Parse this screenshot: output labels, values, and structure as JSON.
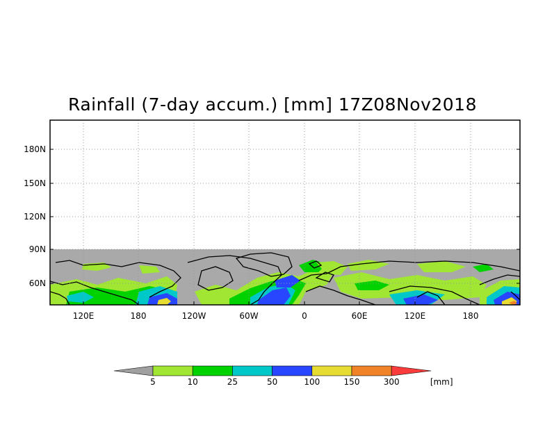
{
  "title": "Rainfall (7-day accum.) [mm] 17Z08Nov2018",
  "map": {
    "y_ticks": [
      "180N",
      "150N",
      "120N",
      "90N",
      "60N"
    ],
    "x_ticks": [
      "120E",
      "180",
      "120W",
      "60W",
      "0",
      "60E",
      "120E",
      "180"
    ],
    "no_data_color": "#a9a9a9",
    "grid": "dotted"
  },
  "legend": {
    "unit": "[mm]",
    "bins": [
      {
        "color": "#a0a0a0",
        "label": ""
      },
      {
        "color": "#a0e632",
        "label": "5"
      },
      {
        "color": "#00d200",
        "label": "10"
      },
      {
        "color": "#00c8c8",
        "label": "25"
      },
      {
        "color": "#2846ff",
        "label": "50"
      },
      {
        "color": "#e6dc32",
        "label": "100"
      },
      {
        "color": "#f08228",
        "label": "150"
      },
      {
        "color": "#fa3c3c",
        "label": "300"
      }
    ]
  }
}
